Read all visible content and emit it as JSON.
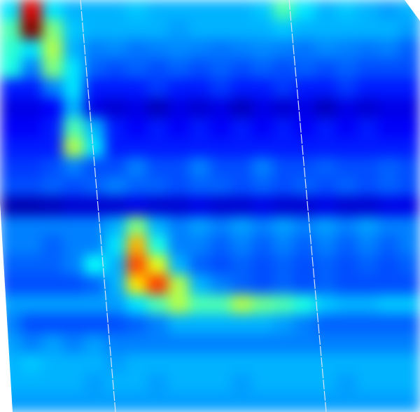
{
  "chart_data": {
    "type": "heatmap",
    "tick_labels": false,
    "cell_range": [
      0,
      1
    ],
    "cells": [
      [
        0.35,
        0.9,
        0.35,
        0.3,
        0.3,
        0.3,
        0.32,
        0.3,
        0.3,
        0.3,
        0.3,
        0.3,
        0.32,
        0.45,
        0.35,
        0.3,
        0.32,
        0.3,
        0.28,
        0.3
      ],
      [
        0.45,
        1.0,
        0.5,
        0.32,
        0.3,
        0.3,
        0.3,
        0.3,
        0.28,
        0.3,
        0.3,
        0.3,
        0.3,
        0.32,
        0.3,
        0.3,
        0.3,
        0.3,
        0.3,
        0.28
      ],
      [
        0.42,
        0.35,
        0.55,
        0.3,
        0.25,
        0.26,
        0.24,
        0.25,
        0.26,
        0.25,
        0.24,
        0.25,
        0.26,
        0.25,
        0.24,
        0.26,
        0.25,
        0.24,
        0.25,
        0.22
      ],
      [
        0.4,
        0.25,
        0.5,
        0.35,
        0.22,
        0.2,
        0.22,
        0.2,
        0.22,
        0.2,
        0.22,
        0.2,
        0.22,
        0.2,
        0.22,
        0.2,
        0.22,
        0.2,
        0.2,
        0.2
      ],
      [
        0.15,
        0.15,
        0.25,
        0.35,
        0.15,
        0.15,
        0.15,
        0.18,
        0.15,
        0.15,
        0.18,
        0.15,
        0.15,
        0.18,
        0.15,
        0.15,
        0.18,
        0.15,
        0.15,
        0.15
      ],
      [
        0.1,
        0.1,
        0.12,
        0.3,
        0.1,
        0.08,
        0.1,
        0.06,
        0.1,
        0.08,
        0.1,
        0.06,
        0.1,
        0.08,
        0.1,
        0.06,
        0.1,
        0.08,
        0.1,
        0.1
      ],
      [
        0.12,
        0.12,
        0.15,
        0.45,
        0.3,
        0.15,
        0.12,
        0.15,
        0.12,
        0.15,
        0.12,
        0.15,
        0.12,
        0.15,
        0.12,
        0.15,
        0.12,
        0.15,
        0.12,
        0.12
      ],
      [
        0.15,
        0.15,
        0.15,
        0.55,
        0.35,
        0.15,
        0.15,
        0.15,
        0.15,
        0.15,
        0.15,
        0.15,
        0.15,
        0.15,
        0.15,
        0.15,
        0.15,
        0.15,
        0.15,
        0.15
      ],
      [
        0.18,
        0.18,
        0.2,
        0.25,
        0.2,
        0.2,
        0.25,
        0.2,
        0.2,
        0.25,
        0.2,
        0.2,
        0.25,
        0.2,
        0.2,
        0.22,
        0.2,
        0.2,
        0.22,
        0.2
      ],
      [
        0.2,
        0.2,
        0.22,
        0.2,
        0.22,
        0.25,
        0.22,
        0.22,
        0.2,
        0.22,
        0.22,
        0.2,
        0.22,
        0.2,
        0.22,
        0.2,
        0.22,
        0.2,
        0.22,
        0.2
      ],
      [
        0.05,
        0.05,
        0.06,
        0.08,
        0.08,
        0.08,
        0.1,
        0.08,
        0.08,
        0.1,
        0.08,
        0.08,
        0.1,
        0.08,
        0.08,
        0.1,
        0.08,
        0.08,
        0.1,
        0.1
      ],
      [
        0.25,
        0.25,
        0.25,
        0.25,
        0.25,
        0.3,
        0.5,
        0.3,
        0.25,
        0.28,
        0.25,
        0.28,
        0.25,
        0.28,
        0.25,
        0.28,
        0.25,
        0.28,
        0.25,
        0.25
      ],
      [
        0.25,
        0.25,
        0.22,
        0.25,
        0.25,
        0.35,
        0.7,
        0.4,
        0.25,
        0.25,
        0.22,
        0.25,
        0.22,
        0.25,
        0.22,
        0.25,
        0.22,
        0.25,
        0.22,
        0.25
      ],
      [
        0.22,
        0.22,
        0.22,
        0.25,
        0.38,
        0.3,
        0.8,
        0.6,
        0.3,
        0.22,
        0.2,
        0.22,
        0.2,
        0.22,
        0.2,
        0.22,
        0.2,
        0.22,
        0.2,
        0.22
      ],
      [
        0.2,
        0.2,
        0.2,
        0.2,
        0.22,
        0.3,
        0.65,
        0.82,
        0.55,
        0.3,
        0.25,
        0.22,
        0.2,
        0.22,
        0.2,
        0.22,
        0.2,
        0.2,
        0.2,
        0.2
      ],
      [
        0.28,
        0.28,
        0.28,
        0.28,
        0.28,
        0.28,
        0.35,
        0.45,
        0.55,
        0.45,
        0.45,
        0.55,
        0.48,
        0.45,
        0.4,
        0.32,
        0.3,
        0.3,
        0.32,
        0.32
      ],
      [
        0.25,
        0.2,
        0.2,
        0.2,
        0.2,
        0.2,
        0.22,
        0.25,
        0.3,
        0.3,
        0.3,
        0.3,
        0.3,
        0.28,
        0.25,
        0.22,
        0.22,
        0.22,
        0.22,
        0.22
      ],
      [
        0.28,
        0.25,
        0.28,
        0.25,
        0.28,
        0.25,
        0.25,
        0.25,
        0.25,
        0.25,
        0.25,
        0.25,
        0.25,
        0.25,
        0.25,
        0.25,
        0.25,
        0.25,
        0.25,
        0.25
      ],
      [
        0.3,
        0.32,
        0.3,
        0.3,
        0.3,
        0.28,
        0.3,
        0.3,
        0.3,
        0.3,
        0.3,
        0.3,
        0.3,
        0.3,
        0.3,
        0.3,
        0.3,
        0.3,
        0.3,
        0.3
      ],
      [
        0.3,
        0.3,
        0.3,
        0.3,
        0.28,
        0.3,
        0.3,
        0.28,
        0.3,
        0.3,
        0.3,
        0.28,
        0.3,
        0.3,
        0.3,
        0.3,
        0.28,
        0.3,
        0.3,
        0.3
      ],
      [
        0.28,
        0.28,
        0.28,
        0.28,
        0.28,
        0.28,
        0.28,
        0.28,
        0.28,
        0.28,
        0.28,
        0.28,
        0.28,
        0.28,
        0.28,
        0.28,
        0.28,
        0.28,
        0.28,
        0.28
      ]
    ]
  }
}
